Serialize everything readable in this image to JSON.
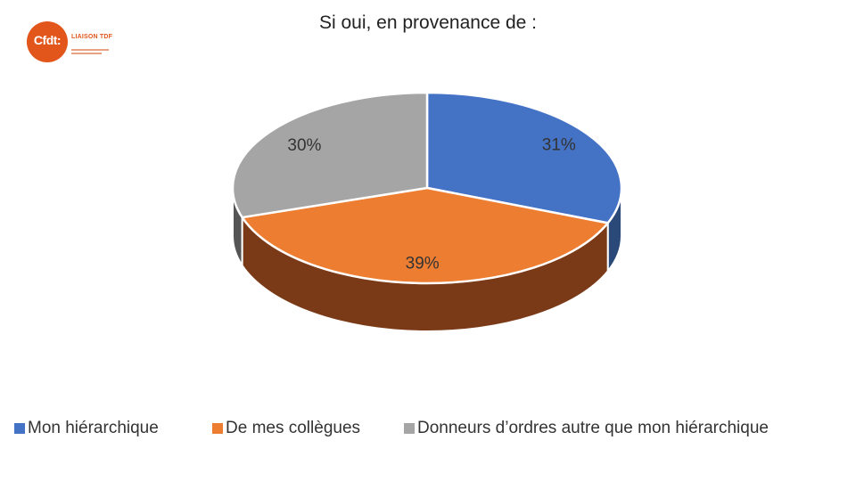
{
  "logo": {
    "mark": "Cfdt:",
    "text": "LIAISON TDF",
    "color": "#e2561c"
  },
  "chart_data": {
    "type": "pie",
    "style": "3d",
    "title": "Si oui, en provenance de :",
    "categories": [
      "Mon hiérarchique",
      "De mes collègues",
      "Donneurs d’ordres autre que mon hiérarchique"
    ],
    "values": [
      31,
      39,
      30
    ],
    "data_labels": [
      "31%",
      "39%",
      "30%"
    ],
    "colors": [
      "#4472c4",
      "#ed7d31",
      "#a5a5a5"
    ],
    "side_colors": [
      "#2a4878",
      "#7b3a17",
      "#555555"
    ],
    "legend_position": "bottom"
  }
}
